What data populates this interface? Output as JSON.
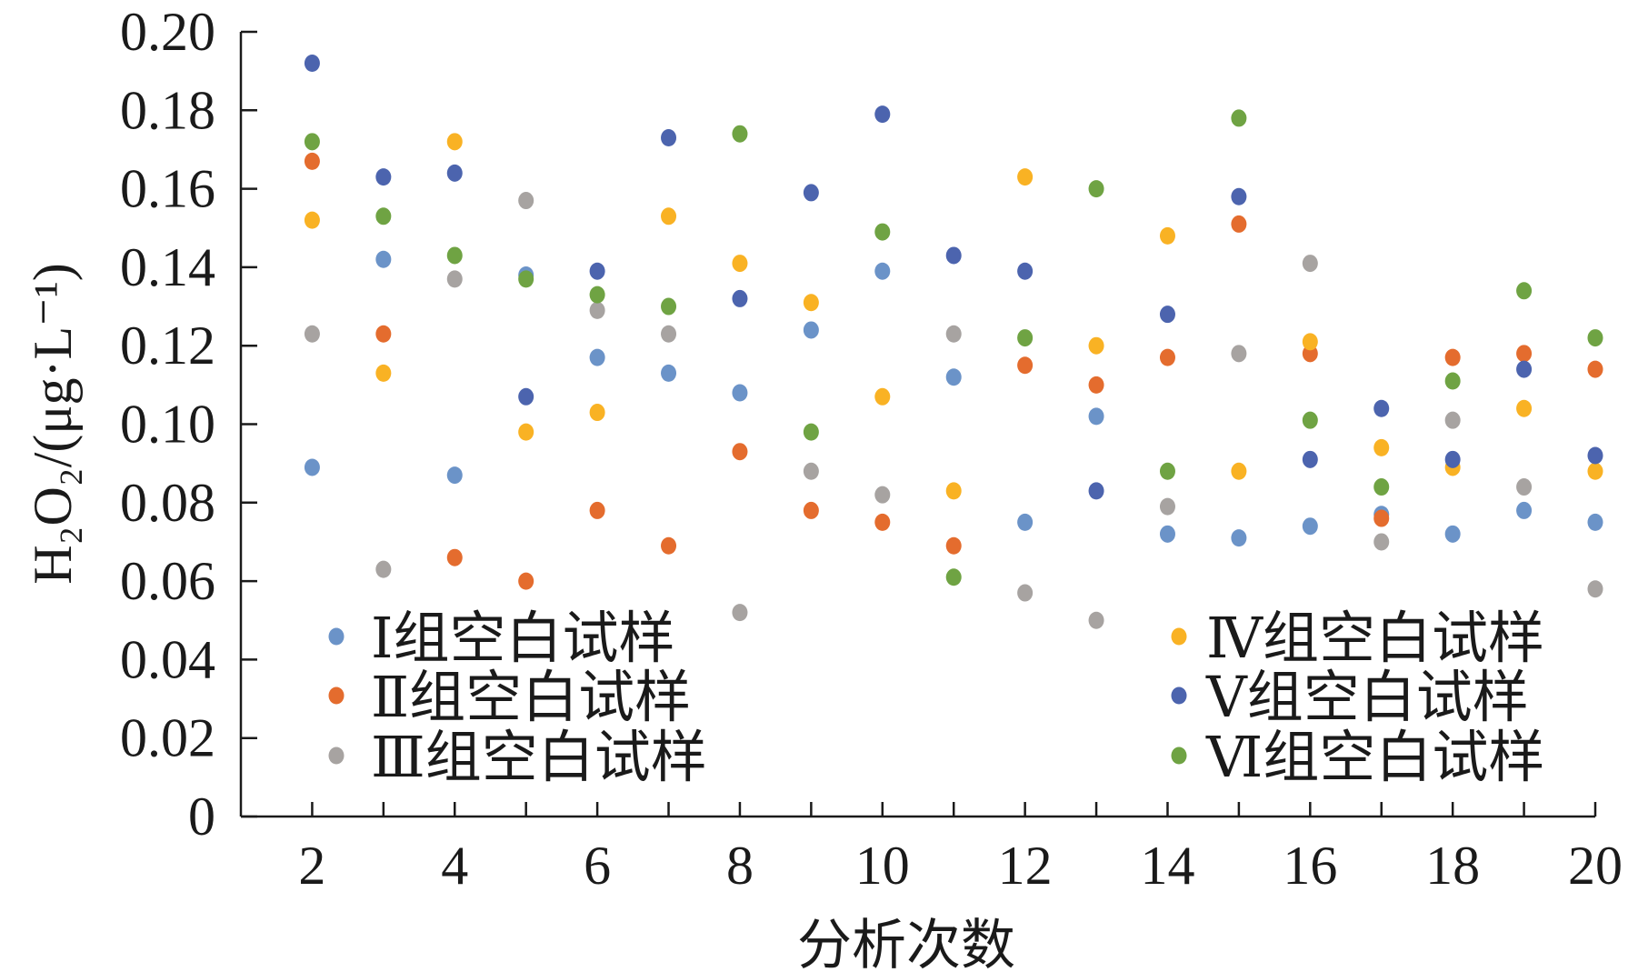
{
  "chart_data": {
    "type": "scatter",
    "xlabel": "分析次数",
    "ylabel": "H₂O₂/(μg·L⁻¹)",
    "xlim": [
      1,
      20
    ],
    "ylim": [
      0,
      0.2
    ],
    "x_ticks": [
      "2",
      "4",
      "6",
      "8",
      "10",
      "12",
      "14",
      "16",
      "18",
      "20"
    ],
    "x_tick_values": [
      2,
      4,
      6,
      8,
      10,
      12,
      14,
      16,
      18,
      20
    ],
    "y_ticks": [
      "0",
      "0.02",
      "0.04",
      "0.06",
      "0.08",
      "0.10",
      "0.12",
      "0.14",
      "0.16",
      "0.18",
      "0.20"
    ],
    "y_tick_values": [
      0,
      0.02,
      0.04,
      0.06,
      0.08,
      0.1,
      0.12,
      0.14,
      0.16,
      0.18,
      0.2
    ],
    "grid": false,
    "legend_placement": "inside, two columns (left and right)",
    "x": [
      2,
      3,
      4,
      5,
      6,
      7,
      8,
      9,
      10,
      11,
      12,
      13,
      14,
      15,
      16,
      17,
      18,
      19,
      20
    ],
    "series": [
      {
        "name": "Ⅰ组空白试样",
        "color": "#6b93c8",
        "values": [
          0.089,
          0.142,
          0.087,
          0.138,
          0.117,
          0.113,
          0.108,
          0.124,
          0.139,
          0.112,
          0.075,
          0.102,
          0.072,
          0.071,
          0.074,
          0.077,
          0.072,
          0.078,
          0.075
        ]
      },
      {
        "name": "Ⅱ组空白试样",
        "color": "#e46c2e",
        "values": [
          0.167,
          0.123,
          0.066,
          0.06,
          0.078,
          0.069,
          0.093,
          0.078,
          0.075,
          0.069,
          0.115,
          0.11,
          0.117,
          0.151,
          0.118,
          0.076,
          0.117,
          0.118,
          0.114
        ]
      },
      {
        "name": "Ⅲ组空白试样",
        "color": "#a7a3a1",
        "values": [
          0.123,
          0.063,
          0.137,
          0.157,
          0.129,
          0.123,
          0.052,
          0.088,
          0.082,
          0.123,
          0.057,
          0.05,
          0.079,
          0.118,
          0.141,
          0.07,
          0.101,
          0.084,
          0.058
        ]
      },
      {
        "name": "Ⅳ组空白试样",
        "color": "#f9b224",
        "values": [
          0.152,
          0.113,
          0.172,
          0.098,
          0.103,
          0.153,
          0.141,
          0.131,
          0.107,
          0.083,
          0.163,
          0.12,
          0.148,
          0.088,
          0.121,
          0.094,
          0.089,
          0.104,
          0.088
        ]
      },
      {
        "name": "Ⅴ组空白试样",
        "color": "#4c64ae",
        "values": [
          0.192,
          0.163,
          0.164,
          0.107,
          0.139,
          0.173,
          0.132,
          0.159,
          0.179,
          0.143,
          0.139,
          0.083,
          0.128,
          0.158,
          0.091,
          0.104,
          0.091,
          0.114,
          0.092
        ]
      },
      {
        "name": "Ⅵ组空白试样",
        "color": "#6fa343",
        "values": [
          0.172,
          0.153,
          0.143,
          0.137,
          0.133,
          0.13,
          0.174,
          0.098,
          0.149,
          0.061,
          0.122,
          0.16,
          0.088,
          0.178,
          0.101,
          0.084,
          0.111,
          0.134,
          0.122
        ]
      }
    ]
  }
}
